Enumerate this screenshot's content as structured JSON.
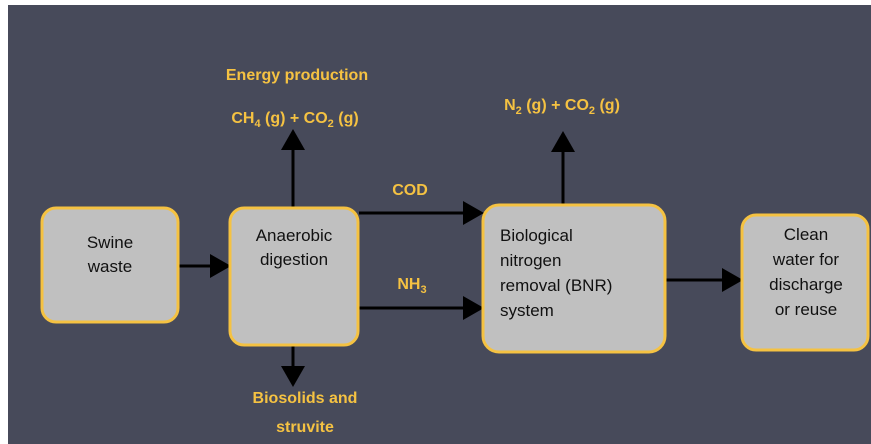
{
  "nodes": [
    {
      "lines": [
        "Swine",
        "waste"
      ]
    },
    {
      "lines": [
        "Anaerobic",
        "digestion"
      ]
    },
    {
      "lines": [
        "Biological",
        "nitrogen",
        "removal (BNR)",
        "system"
      ]
    },
    {
      "lines": [
        "Clean",
        "water for",
        "discharge",
        "or reuse"
      ]
    }
  ],
  "labels": {
    "energy": "Energy production",
    "ch4": [
      "CH",
      "4",
      " (g) + CO",
      "2",
      " (g)"
    ],
    "n2": [
      "N",
      "2",
      " (g) + CO",
      "2",
      " (g)"
    ],
    "cod": "COD",
    "nh3": [
      "NH",
      "3"
    ],
    "biosolids": [
      "Biosolids and",
      "struvite"
    ]
  }
}
